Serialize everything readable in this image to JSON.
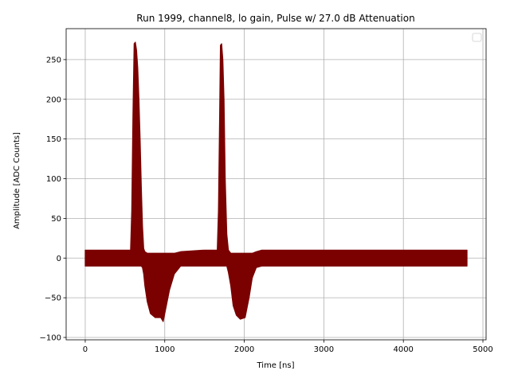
{
  "chart_data": {
    "type": "scatter",
    "title": "Run 1999, channel8, lo gain, Pulse w/ 27.0 dB Attenuation",
    "xlabel": "Time [ns]",
    "ylabel": "Amplitude [ADC Counts]",
    "xlim": [
      -240,
      5040
    ],
    "ylim": [
      -103,
      289
    ],
    "x_ticks": [
      0,
      1000,
      2000,
      3000,
      4000,
      5000
    ],
    "y_ticks": [
      -100,
      -50,
      0,
      50,
      100,
      150,
      200,
      250
    ],
    "grid": true,
    "legend": {
      "placement": "top-right",
      "entries": []
    },
    "series": [
      {
        "color": "#7b0000",
        "marker": "dot",
        "envelope": {
          "x": [
            0,
            570,
            585,
            600,
            615,
            630,
            645,
            660,
            675,
            690,
            705,
            720,
            735,
            750,
            780,
            820,
            880,
            950,
            980,
            1010,
            1060,
            1120,
            1200,
            1500,
            1660,
            1675,
            1690,
            1700,
            1715,
            1730,
            1745,
            1760,
            1780,
            1800,
            1830,
            1860,
            1900,
            1950,
            2010,
            2060,
            2100,
            2150,
            2220,
            2300,
            2600,
            3000,
            3500,
            4000,
            4500,
            4800
          ],
          "upper": [
            10,
            10,
            60,
            180,
            270,
            272,
            262,
            240,
            200,
            150,
            90,
            40,
            12,
            8,
            6,
            6,
            6,
            6,
            6,
            6,
            6,
            6,
            8,
            10,
            10,
            60,
            180,
            268,
            270,
            250,
            200,
            100,
            30,
            10,
            6,
            6,
            6,
            6,
            6,
            6,
            6,
            8,
            10,
            10,
            10,
            10,
            10,
            10,
            10,
            10
          ],
          "lower": [
            -10,
            -10,
            -10,
            -10,
            -10,
            -10,
            -10,
            -10,
            -10,
            -10,
            -10,
            -12,
            -20,
            -35,
            -55,
            -70,
            -75,
            -75,
            -80,
            -65,
            -40,
            -20,
            -10,
            -10,
            -10,
            -10,
            -10,
            -10,
            -10,
            -10,
            -10,
            -10,
            -10,
            -18,
            -35,
            -60,
            -72,
            -77,
            -75,
            -50,
            -25,
            -12,
            -10,
            -10,
            -10,
            -10,
            -10,
            -10,
            -10,
            -10
          ]
        }
      }
    ]
  }
}
